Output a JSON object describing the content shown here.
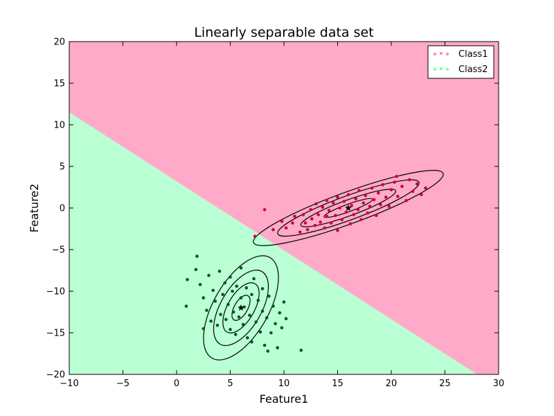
{
  "chart_data": {
    "type": "scatter",
    "title": "Linearly separable data set",
    "xlabel": "Feature1",
    "ylabel": "Feature2",
    "xlim": [
      -10,
      30
    ],
    "ylim": [
      -20,
      20
    ],
    "xticks": [
      -10,
      -5,
      0,
      5,
      10,
      15,
      20,
      25,
      30
    ],
    "yticks": [
      -20,
      -15,
      -10,
      -5,
      0,
      5,
      10,
      15,
      20
    ],
    "xtick_labels": [
      "−10",
      "−5",
      "0",
      "5",
      "10",
      "15",
      "20",
      "25",
      "30"
    ],
    "ytick_labels": [
      "−20",
      "−15",
      "−10",
      "−5",
      "0",
      "5",
      "10",
      "15",
      "20"
    ],
    "grid": false,
    "legend_position": "top-right",
    "decision_boundary": {
      "x": [
        -10,
        28
      ],
      "y": [
        11.5,
        -20
      ]
    },
    "regions": [
      {
        "name": "Class1",
        "side": "above",
        "color": "#ffaac8"
      },
      {
        "name": "Class2",
        "side": "below",
        "color": "#bbffd4"
      }
    ],
    "series": [
      {
        "name": "Class1",
        "legend_color": "#ff8fb3",
        "point_color": "#cc0044",
        "mean": [
          16,
          0
        ],
        "points": [
          [
            9,
            -2.6
          ],
          [
            9.8,
            -1.6
          ],
          [
            10.2,
            -2.4
          ],
          [
            10.8,
            -1.8
          ],
          [
            11,
            -1
          ],
          [
            11.5,
            -2.9
          ],
          [
            11.8,
            -0.8
          ],
          [
            12,
            -1.8
          ],
          [
            12.2,
            -2.6
          ],
          [
            12.5,
            -0.2
          ],
          [
            12.6,
            -1.3
          ],
          [
            12.9,
            -2.1
          ],
          [
            13,
            0.5
          ],
          [
            13.2,
            -0.8
          ],
          [
            13.4,
            -1.7
          ],
          [
            13.6,
            0.1
          ],
          [
            13.8,
            -2.4
          ],
          [
            14,
            -1
          ],
          [
            14,
            0.9
          ],
          [
            14.2,
            -0.3
          ],
          [
            14.4,
            -1.8
          ],
          [
            14.6,
            0.6
          ],
          [
            14.8,
            -0.9
          ],
          [
            15,
            1.3
          ],
          [
            15,
            -2.7
          ],
          [
            15.2,
            0
          ],
          [
            15.4,
            -1.4
          ],
          [
            15.6,
            0.8
          ],
          [
            15.8,
            -0.5
          ],
          [
            16,
            1.6
          ],
          [
            16.2,
            -1.9
          ],
          [
            16.3,
            0.3
          ],
          [
            16.5,
            -0.8
          ],
          [
            16.7,
            1.1
          ],
          [
            16.9,
            -0.2
          ],
          [
            17,
            2.1
          ],
          [
            17.2,
            -1.4
          ],
          [
            17.4,
            0.6
          ],
          [
            17.6,
            1.5
          ],
          [
            17.8,
            -0.6
          ],
          [
            18,
            0.2
          ],
          [
            18.2,
            2.4
          ],
          [
            18.4,
            1
          ],
          [
            18.6,
            -0.9
          ],
          [
            18.8,
            1.8
          ],
          [
            19,
            0.4
          ],
          [
            19.2,
            2.8
          ],
          [
            19.5,
            1.3
          ],
          [
            19.8,
            0.2
          ],
          [
            20,
            2.2
          ],
          [
            20.3,
            3.1
          ],
          [
            20.6,
            1.4
          ],
          [
            21,
            2.6
          ],
          [
            21.4,
            0.9
          ],
          [
            21.7,
            3.4
          ],
          [
            22,
            2
          ],
          [
            22.4,
            2.9
          ],
          [
            22.8,
            1.6
          ],
          [
            23.2,
            2.4
          ],
          [
            8.2,
            -0.2
          ],
          [
            7.3,
            -3.4
          ],
          [
            20.5,
            3.8
          ]
        ]
      },
      {
        "name": "Class2",
        "legend_color": "#7dffb0",
        "point_color": "#005a20",
        "mean": [
          6,
          -12
        ],
        "points": [
          [
            1.9,
            -5.8
          ],
          [
            1,
            -8.6
          ],
          [
            0.9,
            -11.8
          ],
          [
            1.8,
            -7.4
          ],
          [
            2.2,
            -9.2
          ],
          [
            2.5,
            -10.8
          ],
          [
            2.8,
            -12.3
          ],
          [
            3,
            -8.1
          ],
          [
            3.2,
            -13.6
          ],
          [
            3.4,
            -9.9
          ],
          [
            3.6,
            -11.2
          ],
          [
            3.8,
            -14.1
          ],
          [
            4,
            -7.6
          ],
          [
            4.1,
            -12.8
          ],
          [
            4.3,
            -10.4
          ],
          [
            4.5,
            -9
          ],
          [
            4.6,
            -13.4
          ],
          [
            4.8,
            -11.6
          ],
          [
            5,
            -8.3
          ],
          [
            5,
            -14.6
          ],
          [
            5.2,
            -10
          ],
          [
            5.3,
            -12.5
          ],
          [
            5.5,
            -15.2
          ],
          [
            5.6,
            -9.4
          ],
          [
            5.8,
            -13.1
          ],
          [
            6,
            -10.8
          ],
          [
            6,
            -7.2
          ],
          [
            6.2,
            -14
          ],
          [
            6.3,
            -11.9
          ],
          [
            6.5,
            -9.6
          ],
          [
            6.6,
            -15.6
          ],
          [
            6.8,
            -12.9
          ],
          [
            7,
            -10.4
          ],
          [
            7,
            -16.1
          ],
          [
            7.2,
            -8.5
          ],
          [
            7.4,
            -13.7
          ],
          [
            7.6,
            -11.1
          ],
          [
            7.8,
            -14.9
          ],
          [
            8,
            -9.7
          ],
          [
            8,
            -12.4
          ],
          [
            8.2,
            -16.5
          ],
          [
            8.4,
            -13.2
          ],
          [
            8.6,
            -10.6
          ],
          [
            8.8,
            -15
          ],
          [
            9,
            -11.8
          ],
          [
            9.2,
            -13.9
          ],
          [
            9.4,
            -16.8
          ],
          [
            9.6,
            -12.6
          ],
          [
            9.8,
            -14.4
          ],
          [
            10,
            -11.3
          ],
          [
            10.2,
            -13.3
          ],
          [
            8.5,
            -17.2
          ],
          [
            11.6,
            -17.1
          ],
          [
            2.5,
            -14.5
          ]
        ]
      }
    ],
    "contours": [
      {
        "series": "Class1",
        "cx": 16,
        "cy": 0,
        "rx": [
          2.4,
          4.7,
          7,
          9.4
        ],
        "ry": [
          0.45,
          0.95,
          1.45,
          1.9
        ],
        "angle_deg": 20
      },
      {
        "series": "Class2",
        "cx": 6,
        "cy": -12,
        "rx": [
          1.3,
          2.6,
          3.9,
          5.4
        ],
        "ry": [
          0.8,
          1.6,
          2.45,
          3.3
        ],
        "angle_deg": 60
      }
    ],
    "mean_marker": "star"
  }
}
